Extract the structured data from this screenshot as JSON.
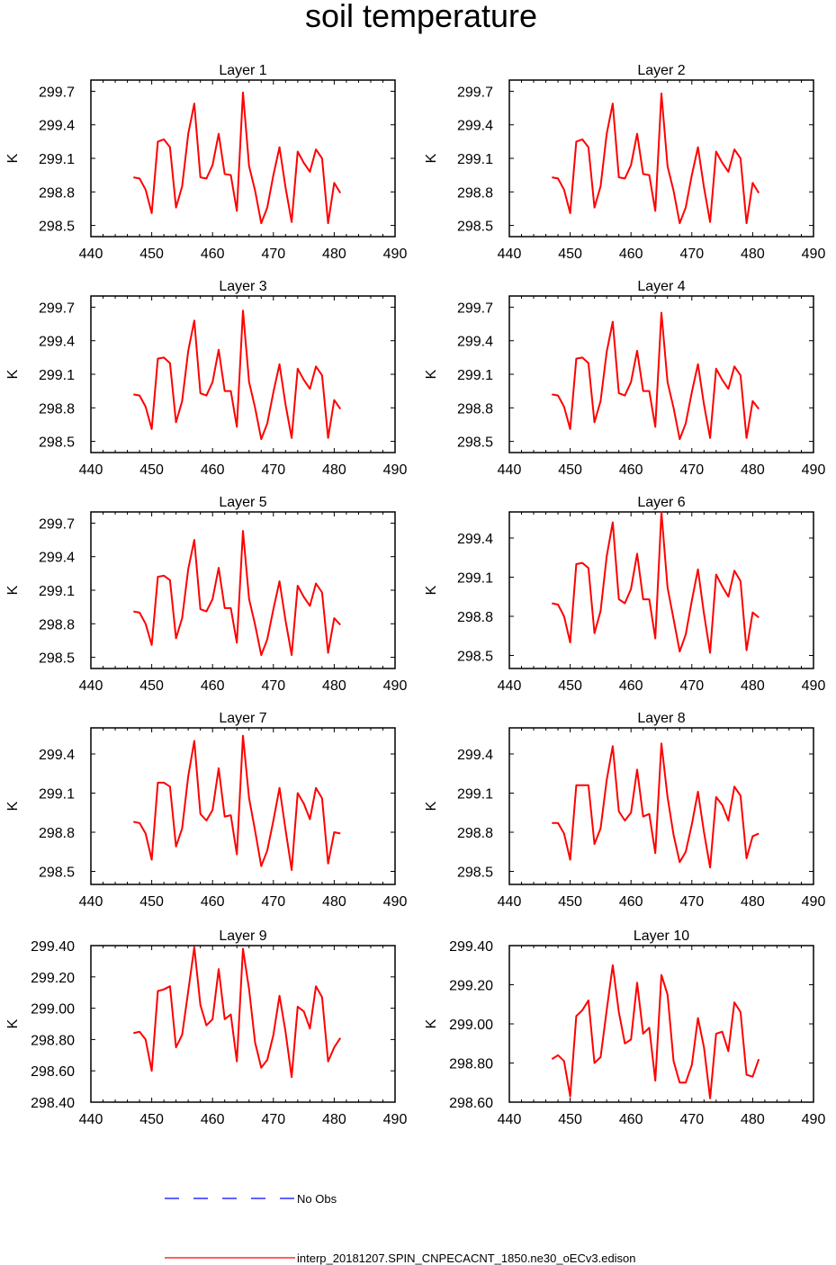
{
  "figure": {
    "title": "soil temperature",
    "legend": {
      "no_obs_label": "No Obs",
      "no_obs_color": "#0000ff",
      "model_label": "interp_20181207.SPIN_CNPECACNT_1850.ne30_oECv3.edison",
      "model_color": "#ff0000"
    }
  },
  "chart_data": [
    {
      "type": "line",
      "title": "Layer 1",
      "ylabel": "K",
      "xlim": [
        440,
        490
      ],
      "xticks": [
        440,
        450,
        460,
        470,
        480,
        490
      ],
      "ylim": [
        298.4,
        299.8
      ],
      "yticks": [
        298.5,
        298.8,
        299.1,
        299.4,
        299.7
      ],
      "ytick_labels": [
        "298.5",
        "298.8",
        "299.1",
        "299.4",
        "299.7"
      ],
      "x": [
        447,
        448,
        449,
        450,
        451,
        452,
        453,
        454,
        455,
        456,
        457,
        458,
        459,
        460,
        461,
        462,
        463,
        464,
        465,
        466,
        467,
        468,
        469,
        470,
        471,
        472,
        473,
        474,
        475,
        476,
        477,
        478,
        479,
        480,
        481
      ],
      "series": [
        {
          "name": "interp_20181207.SPIN_CNPECACNT_1850.ne30_oECv3.edison",
          "values": [
            298.93,
            298.92,
            298.82,
            298.61,
            299.25,
            299.27,
            299.2,
            298.66,
            298.85,
            299.32,
            299.59,
            298.93,
            298.92,
            299.04,
            299.32,
            298.96,
            298.95,
            298.63,
            299.69,
            299.03,
            298.81,
            298.52,
            298.66,
            298.95,
            299.2,
            298.84,
            298.53,
            299.16,
            299.06,
            298.98,
            299.18,
            299.1,
            298.52,
            298.88,
            298.79
          ]
        }
      ]
    },
    {
      "type": "line",
      "title": "Layer 2",
      "ylabel": "K",
      "xlim": [
        440,
        490
      ],
      "xticks": [
        440,
        450,
        460,
        470,
        480,
        490
      ],
      "ylim": [
        298.4,
        299.8
      ],
      "yticks": [
        298.5,
        298.8,
        299.1,
        299.4,
        299.7
      ],
      "ytick_labels": [
        "298.5",
        "298.8",
        "299.1",
        "299.4",
        "299.7"
      ],
      "x": [
        447,
        448,
        449,
        450,
        451,
        452,
        453,
        454,
        455,
        456,
        457,
        458,
        459,
        460,
        461,
        462,
        463,
        464,
        465,
        466,
        467,
        468,
        469,
        470,
        471,
        472,
        473,
        474,
        475,
        476,
        477,
        478,
        479,
        480,
        481
      ],
      "series": [
        {
          "name": "interp_20181207.SPIN_CNPECACNT_1850.ne30_oECv3.edison",
          "values": [
            298.93,
            298.92,
            298.82,
            298.61,
            299.25,
            299.27,
            299.2,
            298.66,
            298.85,
            299.32,
            299.59,
            298.93,
            298.92,
            299.04,
            299.32,
            298.96,
            298.95,
            298.63,
            299.68,
            299.03,
            298.81,
            298.52,
            298.66,
            298.95,
            299.2,
            298.84,
            298.53,
            299.16,
            299.06,
            298.98,
            299.18,
            299.1,
            298.52,
            298.88,
            298.79
          ]
        }
      ]
    },
    {
      "type": "line",
      "title": "Layer 3",
      "ylabel": "K",
      "xlim": [
        440,
        490
      ],
      "xticks": [
        440,
        450,
        460,
        470,
        480,
        490
      ],
      "ylim": [
        298.4,
        299.8
      ],
      "yticks": [
        298.5,
        298.8,
        299.1,
        299.4,
        299.7
      ],
      "ytick_labels": [
        "298.5",
        "298.8",
        "299.1",
        "299.4",
        "299.7"
      ],
      "x": [
        447,
        448,
        449,
        450,
        451,
        452,
        453,
        454,
        455,
        456,
        457,
        458,
        459,
        460,
        461,
        462,
        463,
        464,
        465,
        466,
        467,
        468,
        469,
        470,
        471,
        472,
        473,
        474,
        475,
        476,
        477,
        478,
        479,
        480,
        481
      ],
      "series": [
        {
          "name": "interp_20181207.SPIN_CNPECACNT_1850.ne30_oECv3.edison",
          "values": [
            298.92,
            298.91,
            298.81,
            298.61,
            299.24,
            299.25,
            299.2,
            298.67,
            298.86,
            299.31,
            299.58,
            298.93,
            298.91,
            299.03,
            299.32,
            298.95,
            298.95,
            298.63,
            299.67,
            299.03,
            298.8,
            298.52,
            298.66,
            298.94,
            299.19,
            298.83,
            298.53,
            299.15,
            299.05,
            298.97,
            299.17,
            299.09,
            298.53,
            298.87,
            298.79
          ]
        }
      ]
    },
    {
      "type": "line",
      "title": "Layer 4",
      "ylabel": "K",
      "xlim": [
        440,
        490
      ],
      "xticks": [
        440,
        450,
        460,
        470,
        480,
        490
      ],
      "ylim": [
        298.4,
        299.8
      ],
      "yticks": [
        298.5,
        298.8,
        299.1,
        299.4,
        299.7
      ],
      "ytick_labels": [
        "298.5",
        "298.8",
        "299.1",
        "299.4",
        "299.7"
      ],
      "x": [
        447,
        448,
        449,
        450,
        451,
        452,
        453,
        454,
        455,
        456,
        457,
        458,
        459,
        460,
        461,
        462,
        463,
        464,
        465,
        466,
        467,
        468,
        469,
        470,
        471,
        472,
        473,
        474,
        475,
        476,
        477,
        478,
        479,
        480,
        481
      ],
      "series": [
        {
          "name": "interp_20181207.SPIN_CNPECACNT_1850.ne30_oECv3.edison",
          "values": [
            298.92,
            298.91,
            298.81,
            298.61,
            299.24,
            299.25,
            299.2,
            298.67,
            298.86,
            299.3,
            299.57,
            298.93,
            298.91,
            299.03,
            299.31,
            298.95,
            298.95,
            298.63,
            299.65,
            299.03,
            298.8,
            298.52,
            298.66,
            298.94,
            299.19,
            298.83,
            298.53,
            299.15,
            299.05,
            298.97,
            299.17,
            299.09,
            298.53,
            298.86,
            298.79
          ]
        }
      ]
    },
    {
      "type": "line",
      "title": "Layer 5",
      "ylabel": "K",
      "xlim": [
        440,
        490
      ],
      "xticks": [
        440,
        450,
        460,
        470,
        480,
        490
      ],
      "ylim": [
        298.4,
        299.8
      ],
      "yticks": [
        298.5,
        298.8,
        299.1,
        299.4,
        299.7
      ],
      "ytick_labels": [
        "298.5",
        "298.8",
        "299.1",
        "299.4",
        "299.7"
      ],
      "x": [
        447,
        448,
        449,
        450,
        451,
        452,
        453,
        454,
        455,
        456,
        457,
        458,
        459,
        460,
        461,
        462,
        463,
        464,
        465,
        466,
        467,
        468,
        469,
        470,
        471,
        472,
        473,
        474,
        475,
        476,
        477,
        478,
        479,
        480,
        481
      ],
      "series": [
        {
          "name": "interp_20181207.SPIN_CNPECACNT_1850.ne30_oECv3.edison",
          "values": [
            298.91,
            298.9,
            298.8,
            298.61,
            299.22,
            299.23,
            299.19,
            298.67,
            298.85,
            299.29,
            299.55,
            298.93,
            298.91,
            299.02,
            299.3,
            298.94,
            298.94,
            298.63,
            299.63,
            299.02,
            298.79,
            298.52,
            298.66,
            298.93,
            299.18,
            298.83,
            298.52,
            299.14,
            299.04,
            298.96,
            299.16,
            299.08,
            298.54,
            298.85,
            298.79
          ]
        }
      ]
    },
    {
      "type": "line",
      "title": "Layer 6",
      "ylabel": "K",
      "xlim": [
        440,
        490
      ],
      "xticks": [
        440,
        450,
        460,
        470,
        480,
        490
      ],
      "ylim": [
        298.4,
        299.6
      ],
      "yticks": [
        298.5,
        298.8,
        299.1,
        299.4
      ],
      "ytick_labels": [
        "298.5",
        "298.8",
        "299.1",
        "299.4"
      ],
      "x": [
        447,
        448,
        449,
        450,
        451,
        452,
        453,
        454,
        455,
        456,
        457,
        458,
        459,
        460,
        461,
        462,
        463,
        464,
        465,
        466,
        467,
        468,
        469,
        470,
        471,
        472,
        473,
        474,
        475,
        476,
        477,
        478,
        479,
        480,
        481
      ],
      "series": [
        {
          "name": "interp_20181207.SPIN_CNPECACNT_1850.ne30_oECv3.edison",
          "values": [
            298.9,
            298.89,
            298.8,
            298.6,
            299.2,
            299.21,
            299.17,
            298.67,
            298.84,
            299.26,
            299.52,
            298.93,
            298.9,
            299.01,
            299.28,
            298.93,
            298.93,
            298.63,
            299.6,
            299.02,
            298.78,
            298.53,
            298.66,
            298.92,
            299.16,
            298.82,
            298.52,
            299.12,
            299.03,
            298.95,
            299.15,
            299.07,
            298.54,
            298.83,
            298.79
          ]
        }
      ]
    },
    {
      "type": "line",
      "title": "Layer 7",
      "ylabel": "K",
      "xlim": [
        440,
        490
      ],
      "xticks": [
        440,
        450,
        460,
        470,
        480,
        490
      ],
      "ylim": [
        298.4,
        299.6
      ],
      "yticks": [
        298.5,
        298.8,
        299.1,
        299.4
      ],
      "ytick_labels": [
        "298.5",
        "298.8",
        "299.1",
        "299.4"
      ],
      "x": [
        447,
        448,
        449,
        450,
        451,
        452,
        453,
        454,
        455,
        456,
        457,
        458,
        459,
        460,
        461,
        462,
        463,
        464,
        465,
        466,
        467,
        468,
        469,
        470,
        471,
        472,
        473,
        474,
        475,
        476,
        477,
        478,
        479,
        480,
        481
      ],
      "series": [
        {
          "name": "interp_20181207.SPIN_CNPECACNT_1850.ne30_oECv3.edison",
          "values": [
            298.88,
            298.87,
            298.79,
            298.59,
            299.18,
            299.18,
            299.15,
            298.69,
            298.83,
            299.23,
            299.5,
            298.94,
            298.89,
            298.97,
            299.29,
            298.92,
            298.93,
            298.63,
            299.54,
            299.06,
            298.81,
            298.54,
            298.66,
            298.89,
            299.14,
            298.82,
            298.51,
            299.1,
            299.02,
            298.9,
            299.14,
            299.06,
            298.56,
            298.8,
            298.79
          ]
        }
      ]
    },
    {
      "type": "line",
      "title": "Layer 8",
      "ylabel": "K",
      "xlim": [
        440,
        490
      ],
      "xticks": [
        440,
        450,
        460,
        470,
        480,
        490
      ],
      "ylim": [
        298.4,
        299.6
      ],
      "yticks": [
        298.5,
        298.8,
        299.1,
        299.4
      ],
      "ytick_labels": [
        "298.5",
        "298.8",
        "299.1",
        "299.4"
      ],
      "x": [
        447,
        448,
        449,
        450,
        451,
        452,
        453,
        454,
        455,
        456,
        457,
        458,
        459,
        460,
        461,
        462,
        463,
        464,
        465,
        466,
        467,
        468,
        469,
        470,
        471,
        472,
        473,
        474,
        475,
        476,
        477,
        478,
        479,
        480,
        481
      ],
      "series": [
        {
          "name": "interp_20181207.SPIN_CNPECACNT_1850.ne30_oECv3.edison",
          "values": [
            298.87,
            298.87,
            298.79,
            298.59,
            299.16,
            299.16,
            299.16,
            298.71,
            298.83,
            299.2,
            299.46,
            298.96,
            298.89,
            298.95,
            299.28,
            298.92,
            298.94,
            298.64,
            299.48,
            299.07,
            298.78,
            298.57,
            298.65,
            298.86,
            299.11,
            298.8,
            298.53,
            299.07,
            299.01,
            298.89,
            299.15,
            299.08,
            298.6,
            298.77,
            298.79
          ]
        }
      ]
    },
    {
      "type": "line",
      "title": "Layer 9",
      "ylabel": "K",
      "xlim": [
        440,
        490
      ],
      "xticks": [
        440,
        450,
        460,
        470,
        480,
        490
      ],
      "ylim": [
        298.4,
        299.4
      ],
      "yticks": [
        298.4,
        298.6,
        298.8,
        299.0,
        299.2,
        299.4
      ],
      "ytick_labels": [
        "298.40",
        "298.60",
        "298.80",
        "299.00",
        "299.20",
        "299.40"
      ],
      "x": [
        447,
        448,
        449,
        450,
        451,
        452,
        453,
        454,
        455,
        456,
        457,
        458,
        459,
        460,
        461,
        462,
        463,
        464,
        465,
        466,
        467,
        468,
        469,
        470,
        471,
        472,
        473,
        474,
        475,
        476,
        477,
        478,
        479,
        480,
        481
      ],
      "series": [
        {
          "name": "interp_20181207.SPIN_CNPECACNT_1850.ne30_oECv3.edison",
          "values": [
            298.84,
            298.85,
            298.8,
            298.6,
            299.11,
            299.12,
            299.14,
            298.75,
            298.83,
            299.11,
            299.39,
            299.02,
            298.89,
            298.93,
            299.25,
            298.93,
            298.96,
            298.66,
            299.38,
            299.12,
            298.78,
            298.62,
            298.67,
            298.83,
            299.08,
            298.85,
            298.56,
            299.01,
            298.98,
            298.87,
            299.14,
            299.07,
            298.66,
            298.75,
            298.81
          ]
        }
      ]
    },
    {
      "type": "line",
      "title": "Layer 10",
      "ylabel": "K",
      "xlim": [
        440,
        490
      ],
      "xticks": [
        440,
        450,
        460,
        470,
        480,
        490
      ],
      "ylim": [
        298.6,
        299.4
      ],
      "yticks": [
        298.6,
        298.8,
        299.0,
        299.2,
        299.4
      ],
      "ytick_labels": [
        "298.60",
        "298.80",
        "299.00",
        "299.20",
        "299.40"
      ],
      "x": [
        447,
        448,
        449,
        450,
        451,
        452,
        453,
        454,
        455,
        456,
        457,
        458,
        459,
        460,
        461,
        462,
        463,
        464,
        465,
        466,
        467,
        468,
        469,
        470,
        471,
        472,
        473,
        474,
        475,
        476,
        477,
        478,
        479,
        480,
        481
      ],
      "series": [
        {
          "name": "interp_20181207.SPIN_CNPECACNT_1850.ne30_oECv3.edison",
          "values": [
            298.82,
            298.84,
            298.81,
            298.63,
            299.04,
            299.07,
            299.12,
            298.8,
            298.83,
            299.07,
            299.3,
            299.06,
            298.9,
            298.92,
            299.21,
            298.95,
            298.98,
            298.71,
            299.25,
            299.15,
            298.81,
            298.7,
            298.7,
            298.79,
            299.03,
            298.88,
            298.62,
            298.95,
            298.96,
            298.86,
            299.11,
            299.06,
            298.74,
            298.73,
            298.82
          ]
        }
      ]
    }
  ]
}
